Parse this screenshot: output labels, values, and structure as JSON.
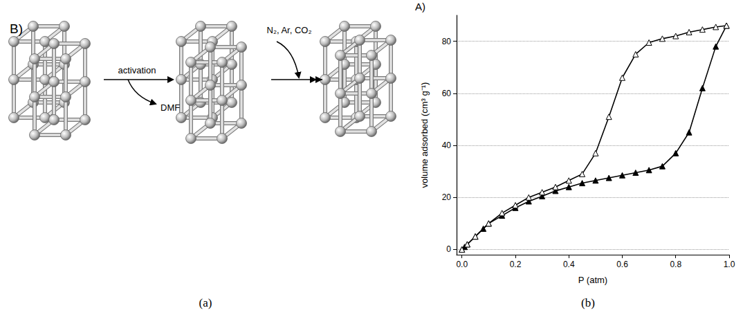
{
  "diagram": {
    "panel_label": "B)",
    "caption": "(a)",
    "steps": [
      {
        "label": "activation",
        "released": "DMF"
      },
      {
        "label": "N₂, Ar, CO₂"
      }
    ]
  },
  "chart_data": {
    "type": "line",
    "panel_label": "A)",
    "caption": "(b)",
    "x_label": "P (atm)",
    "y_label": "volume adsorbed (cm³ g⁻¹)",
    "xlim": [
      -0.02,
      1.0
    ],
    "xticks": [
      {
        "value": 0,
        "label": "0.0"
      },
      0.2,
      0.4,
      0.6,
      0.8,
      {
        "value": 1,
        "label": "1.0"
      }
    ],
    "ylim": [
      -2,
      90
    ],
    "yticks": [
      0,
      20,
      40,
      60,
      80
    ],
    "grid": true,
    "series": [
      {
        "marker": "filled_triangle",
        "color": "#000000",
        "x": [
          0,
          0.01,
          0.02,
          0.05,
          0.08,
          0.1,
          0.15,
          0.2,
          0.25,
          0.3,
          0.35,
          0.4,
          0.45,
          0.5,
          0.55,
          0.6,
          0.65,
          0.7,
          0.75,
          0.8,
          0.85,
          0.9,
          0.95,
          0.99
        ],
        "values": [
          0,
          1,
          2,
          5,
          8,
          10,
          13,
          16,
          18.5,
          20.5,
          22.5,
          24,
          25.5,
          26.5,
          27.5,
          28.5,
          29.5,
          30.5,
          32,
          37,
          45,
          62,
          78,
          86
        ]
      },
      {
        "marker": "open_triangle",
        "color": "#000000",
        "x": [
          0.99,
          0.95,
          0.9,
          0.85,
          0.8,
          0.75,
          0.7,
          0.65,
          0.6,
          0.55,
          0.5,
          0.45,
          0.4,
          0.35,
          0.3,
          0.25,
          0.2,
          0.15,
          0.1,
          0.05,
          0.02,
          0
        ],
        "values": [
          86,
          85.5,
          84.5,
          83.5,
          82,
          81,
          79.5,
          75,
          66,
          51,
          37,
          29,
          26.5,
          24,
          22,
          20,
          17,
          14,
          10,
          5,
          2,
          0
        ]
      }
    ]
  }
}
